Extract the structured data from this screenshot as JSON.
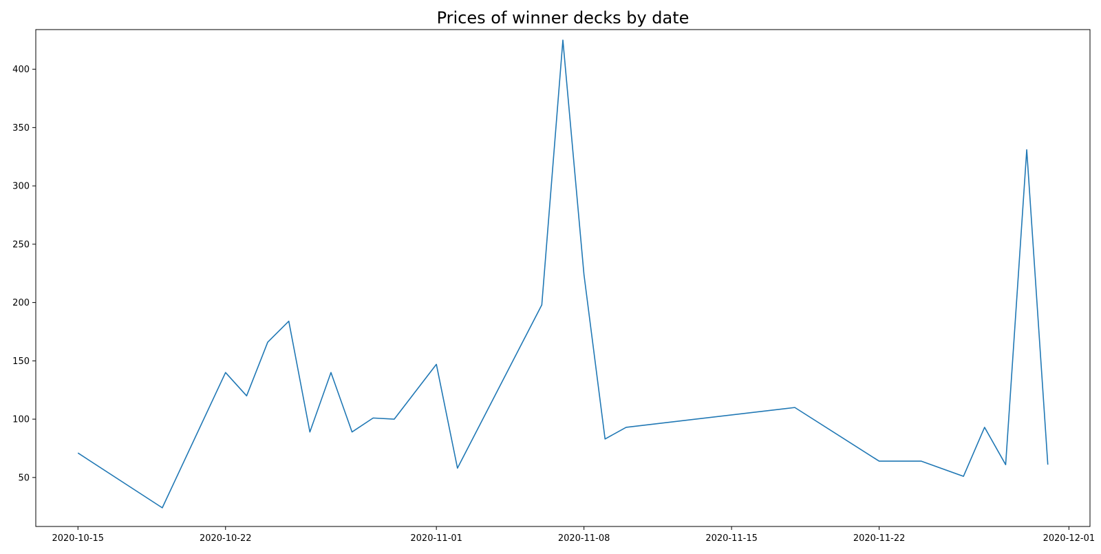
{
  "chart_data": {
    "type": "line",
    "title": "Prices of winner decks by date",
    "xlabel": "",
    "ylabel": "",
    "xlim": [
      "2020-10-13",
      "2020-12-02"
    ],
    "ylim": [
      8,
      434
    ],
    "x_ticks": [
      "2020-10-15",
      "2020-10-22",
      "2020-11-01",
      "2020-11-08",
      "2020-11-15",
      "2020-11-22",
      "2020-12-01"
    ],
    "y_ticks": [
      50,
      100,
      150,
      200,
      250,
      300,
      350,
      400
    ],
    "grid": false,
    "legend": "none",
    "series": [
      {
        "color": "#1f77b4",
        "points": [
          {
            "x": "2020-10-15",
            "y": 71
          },
          {
            "x": "2020-10-19",
            "y": 24
          },
          {
            "x": "2020-10-22",
            "y": 140
          },
          {
            "x": "2020-10-23",
            "y": 120
          },
          {
            "x": "2020-10-24",
            "y": 166
          },
          {
            "x": "2020-10-25",
            "y": 184
          },
          {
            "x": "2020-10-26",
            "y": 89
          },
          {
            "x": "2020-10-27",
            "y": 140
          },
          {
            "x": "2020-10-28",
            "y": 89
          },
          {
            "x": "2020-10-29",
            "y": 101
          },
          {
            "x": "2020-10-30",
            "y": 100
          },
          {
            "x": "2020-11-01",
            "y": 147
          },
          {
            "x": "2020-11-02",
            "y": 58
          },
          {
            "x": "2020-11-06",
            "y": 198
          },
          {
            "x": "2020-11-07",
            "y": 425
          },
          {
            "x": "2020-11-08",
            "y": 224
          },
          {
            "x": "2020-11-09",
            "y": 83
          },
          {
            "x": "2020-11-10",
            "y": 93
          },
          {
            "x": "2020-11-18",
            "y": 110
          },
          {
            "x": "2020-11-22",
            "y": 64
          },
          {
            "x": "2020-11-24",
            "y": 64
          },
          {
            "x": "2020-11-26",
            "y": 51
          },
          {
            "x": "2020-11-27",
            "y": 93
          },
          {
            "x": "2020-11-28",
            "y": 61
          },
          {
            "x": "2020-11-29",
            "y": 331
          },
          {
            "x": "2020-11-30",
            "y": 61
          }
        ]
      }
    ]
  }
}
